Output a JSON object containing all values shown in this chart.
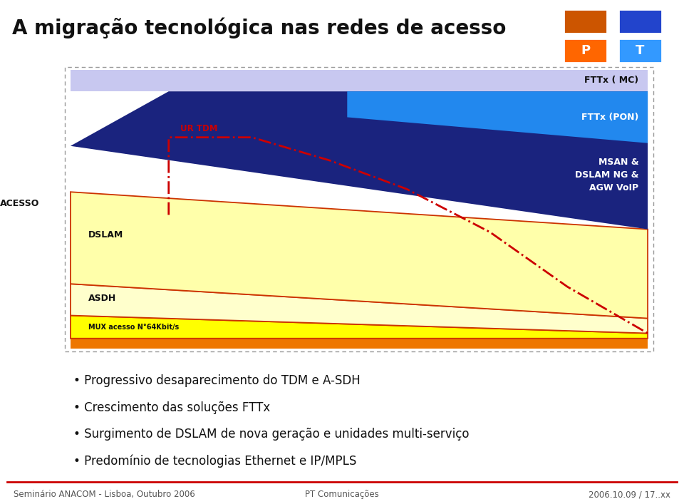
{
  "title": "A migração tecnológica nas redes de acesso",
  "title_fontsize": 20,
  "title_color": "#111111",
  "background_color": "#ffffff",
  "footer_left": "Seminário ANACOM - Lisboa, Outubro 2006",
  "footer_center": "PT Comunicações",
  "footer_right": "2006.10.09 / 17..xx",
  "acesso_label": "ACESSO",
  "bullets": [
    "Progressivo desaparecimento do TDM e A-SDH",
    "Crescimento das soluções FTTx",
    "Surgimento de DSLAM de nova geração e unidades multi-serviço",
    "Predomínio de tecnologias Ethernet e IP/MPLS"
  ],
  "fttx_mc_label": "FTTx ( MC)",
  "fttx_mc_color": "#c8c8f0",
  "fttx_pon_label": "FTTx (PON)",
  "fttx_pon_color": "#2288ee",
  "msan_label": "MSAN &\nDSLAM NG &\nAGW VoIP",
  "msan_color": "#1a237e",
  "dslam_label": "DSLAM",
  "dslam_color": "#ffffaa",
  "asdh_label": "ASDH",
  "asdh_color": "#ffffcc",
  "mux_label": "MUX acesso N°64Kbit/s",
  "mux_color": "#ffff00",
  "base_color": "#ee7700",
  "ur_tdm_label": "UR TDM",
  "ur_tdm_color": "#cc0000",
  "logo_colors_top": [
    "#cc5500",
    "#2244cc"
  ],
  "logo_colors_bot": [
    "#ff6600",
    "#3399ff"
  ],
  "logo_letters": [
    "P",
    "T"
  ]
}
